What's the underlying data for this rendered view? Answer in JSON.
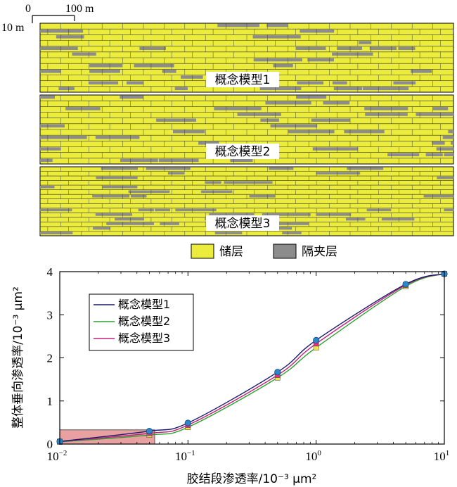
{
  "scale_bar": {
    "origin_label": "0",
    "horizontal_label": "100 m",
    "vertical_label": "10 m"
  },
  "panels": [
    {
      "label": "概念模型1"
    },
    {
      "label": "概念模型2"
    },
    {
      "label": "概念模型3"
    }
  ],
  "panel_legend": {
    "reservoir": {
      "label": "储层",
      "color": "#ecec3c"
    },
    "barrier": {
      "label": "隔夹层",
      "color": "#8c8c8c"
    }
  },
  "chart_data": {
    "type": "line",
    "xlabel": "胶结段渗透率/10⁻³ μm²",
    "ylabel": "整体垂向渗透率/10⁻³ μm²",
    "xscale": "log",
    "xlim": [
      0.01,
      10
    ],
    "ylim": [
      0,
      4
    ],
    "x_ticks": [
      0.01,
      0.1,
      1,
      10
    ],
    "x_tick_labels": [
      {
        "base": "10",
        "exp": "−2"
      },
      {
        "base": "10",
        "exp": "−1"
      },
      {
        "base": "10",
        "exp": "0"
      },
      {
        "base": "10",
        "exp": "1"
      }
    ],
    "y_ticks": [
      0,
      1,
      2,
      3,
      4
    ],
    "y_tick_labels": [
      "0",
      "1",
      "2",
      "3",
      "4"
    ],
    "x": [
      0.01,
      0.05,
      0.1,
      0.5,
      1,
      5,
      10
    ],
    "series": [
      {
        "name": "概念模型1",
        "color": "#1a1a6e",
        "marker_color": "#2e86c8",
        "values": [
          0.06,
          0.3,
          0.49,
          1.67,
          2.41,
          3.71,
          3.95
        ]
      },
      {
        "name": "概念模型2",
        "color": "#2ca02c",
        "marker_color": "#f0e840",
        "values": [
          0.05,
          0.21,
          0.39,
          1.54,
          2.24,
          3.66,
          3.95
        ]
      },
      {
        "name": "概念模型3",
        "color": "#c0207a",
        "marker_color": "#e03080",
        "values": [
          0.06,
          0.25,
          0.44,
          1.6,
          2.33,
          3.69,
          3.95
        ]
      }
    ],
    "highlight_region": {
      "x": [
        0.01,
        0.055
      ],
      "y": [
        0,
        0.33
      ],
      "color": "#e8a0a0"
    },
    "legend_position": "upper-left"
  }
}
